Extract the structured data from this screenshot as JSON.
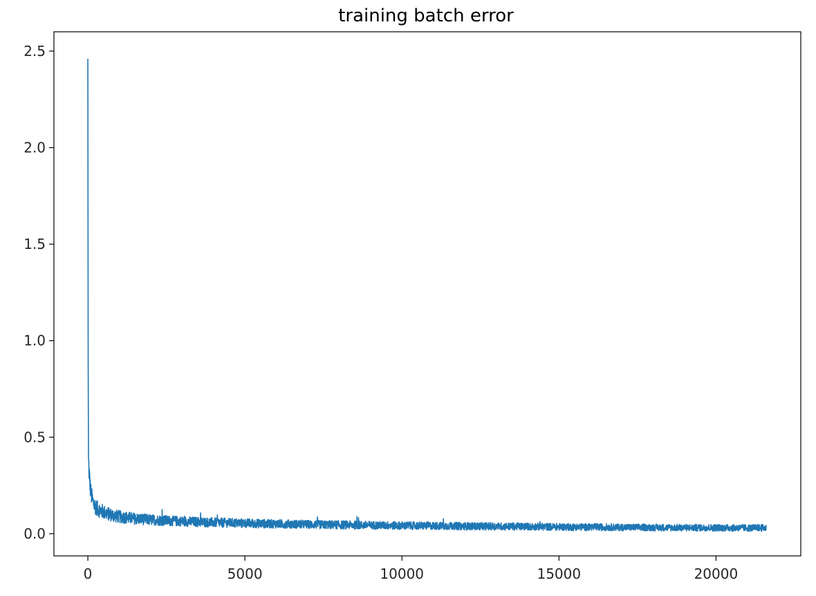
{
  "chart_data": {
    "type": "line",
    "title": "training batch error",
    "xlabel": "",
    "ylabel": "",
    "xlim": [
      -1080,
      22700
    ],
    "ylim": [
      -0.115,
      2.6
    ],
    "x_ticks": [
      0,
      5000,
      10000,
      15000,
      20000
    ],
    "x_tick_labels": [
      "0",
      "5000",
      "10000",
      "15000",
      "20000"
    ],
    "y_ticks": [
      0.0,
      0.5,
      1.0,
      1.5,
      2.0,
      2.5
    ],
    "y_tick_labels": [
      "0.0",
      "0.5",
      "1.0",
      "1.5",
      "2.0",
      "2.5"
    ],
    "grid": false,
    "series": [
      {
        "color": "#1f77b4",
        "x_range": [
          0,
          21600
        ],
        "x": [
          0,
          10,
          20,
          40,
          70,
          100,
          150,
          200,
          300,
          400,
          600,
          800,
          1000,
          1500,
          2000,
          3000,
          4000,
          5000,
          6000,
          7000,
          8000,
          9000,
          10000,
          11000,
          12000,
          13000,
          14000,
          15000,
          16000,
          17000,
          18000,
          19000,
          20000,
          21000,
          21600
        ],
        "y_mean": [
          2.46,
          0.9,
          0.38,
          0.32,
          0.25,
          0.21,
          0.17,
          0.15,
          0.13,
          0.12,
          0.105,
          0.095,
          0.088,
          0.078,
          0.072,
          0.064,
          0.058,
          0.054,
          0.051,
          0.048,
          0.046,
          0.044,
          0.042,
          0.041,
          0.039,
          0.038,
          0.037,
          0.035,
          0.034,
          0.033,
          0.032,
          0.031,
          0.031,
          0.03,
          0.03
        ],
        "y_spread": [
          0.0,
          0.0,
          0.06,
          0.06,
          0.05,
          0.05,
          0.045,
          0.045,
          0.04,
          0.04,
          0.035,
          0.035,
          0.033,
          0.03,
          0.028,
          0.026,
          0.025,
          0.024,
          0.023,
          0.022,
          0.022,
          0.021,
          0.021,
          0.02,
          0.02,
          0.02,
          0.019,
          0.019,
          0.019,
          0.018,
          0.018,
          0.018,
          0.018,
          0.018,
          0.018
        ]
      }
    ]
  }
}
